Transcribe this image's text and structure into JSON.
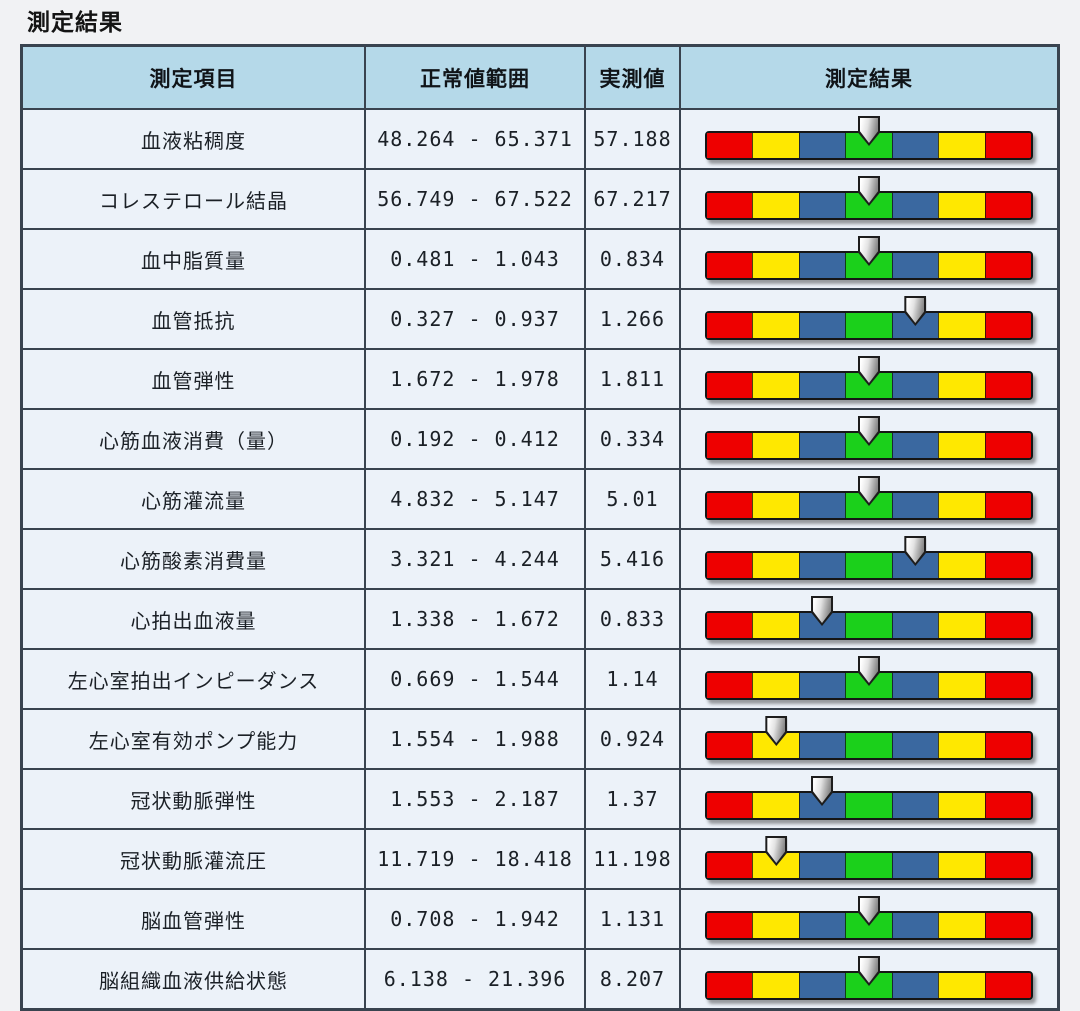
{
  "title": "測定結果",
  "table": {
    "columns": [
      "測定項目",
      "正常値範囲",
      "実測値",
      "測定結果"
    ],
    "rows": [
      {
        "item": "血液粘稠度",
        "range": "48.264 - 65.371",
        "value": "57.188",
        "marker_pos": 0.5
      },
      {
        "item": "コレステロール結晶",
        "range": "56.749 - 67.522",
        "value": "67.217",
        "marker_pos": 0.5
      },
      {
        "item": "血中脂質量",
        "range": "0.481 - 1.043",
        "value": "0.834",
        "marker_pos": 0.5
      },
      {
        "item": "血管抵抗",
        "range": "0.327 - 0.937",
        "value": "1.266",
        "marker_pos": 0.643
      },
      {
        "item": "血管弾性",
        "range": "1.672 - 1.978",
        "value": "1.811",
        "marker_pos": 0.5
      },
      {
        "item": "心筋血液消費（量）",
        "range": "0.192 - 0.412",
        "value": "0.334",
        "marker_pos": 0.5
      },
      {
        "item": "心筋灌流量",
        "range": "4.832 - 5.147",
        "value": "5.01",
        "marker_pos": 0.5
      },
      {
        "item": "心筋酸素消費量",
        "range": "3.321 - 4.244",
        "value": "5.416",
        "marker_pos": 0.643
      },
      {
        "item": "心拍出血液量",
        "range": "1.338 - 1.672",
        "value": "0.833",
        "marker_pos": 0.355
      },
      {
        "item": "左心室拍出インピーダンス",
        "range": "0.669 - 1.544",
        "value": "1.14",
        "marker_pos": 0.5
      },
      {
        "item": "左心室有効ポンプ能力",
        "range": "1.554 - 1.988",
        "value": "0.924",
        "marker_pos": 0.214
      },
      {
        "item": "冠状動脈弾性",
        "range": "1.553 - 2.187",
        "value": "1.37",
        "marker_pos": 0.355
      },
      {
        "item": "冠状動脈灌流圧",
        "range": "11.719 - 18.418",
        "value": "11.198",
        "marker_pos": 0.214
      },
      {
        "item": "脳血管弾性",
        "range": "0.708 - 1.942",
        "value": "1.131",
        "marker_pos": 0.5
      },
      {
        "item": "脳組織血液供給状態",
        "range": "6.138 - 21.396",
        "value": "8.207",
        "marker_pos": 0.5
      }
    ]
  },
  "bar": {
    "segment_colors": [
      "#ee0000",
      "#ffe800",
      "#3a68a0",
      "#1bd01b",
      "#3a68a0",
      "#ffe800",
      "#ee0000"
    ],
    "segment_names": [
      "red-zone",
      "yellow-zone",
      "blue-zone",
      "green-normal-zone",
      "blue-zone",
      "yellow-zone",
      "red-zone"
    ]
  },
  "colors": {
    "header_bg": "#b5d9e9",
    "row_bg": "#ecf2f9",
    "table_border": "#39434f",
    "page_bg": "#f1f2f4",
    "marker_fill": "#d8d8d8"
  }
}
